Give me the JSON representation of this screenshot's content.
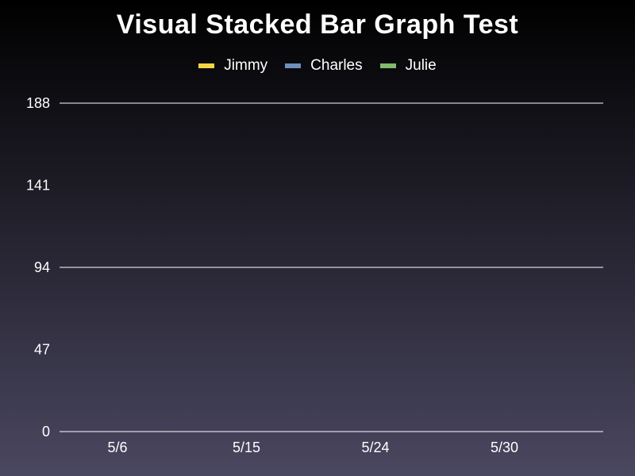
{
  "chart_data": {
    "type": "bar",
    "stacked": true,
    "title": "Visual Stacked Bar Graph Test",
    "categories": [
      "5/6",
      "5/15",
      "5/24",
      "5/30"
    ],
    "series": [
      {
        "name": "Jimmy",
        "color": "#f5d547",
        "values": [
          0,
          0,
          0,
          0
        ]
      },
      {
        "name": "Charles",
        "color": "#6f8fbf",
        "values": [
          0,
          0,
          0,
          0
        ]
      },
      {
        "name": "Julie",
        "color": "#7fba6f",
        "values": [
          0,
          0,
          0,
          0
        ]
      }
    ],
    "yticks": [
      "0",
      "47",
      "94",
      "141",
      "188"
    ],
    "ylim": [
      0,
      188
    ],
    "gridlines": [
      0,
      94,
      188
    ],
    "legend_position": "top-center",
    "background": "dark-gradient"
  }
}
